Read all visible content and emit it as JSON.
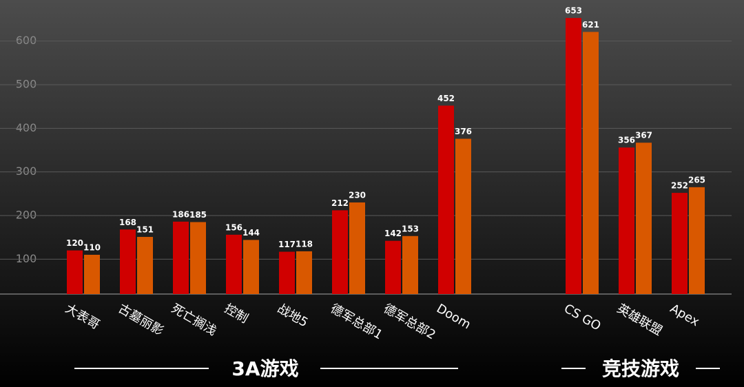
{
  "chart_data": {
    "type": "bar",
    "ylim": [
      20,
      680
    ],
    "yticks": [
      100,
      200,
      300,
      400,
      500,
      600
    ],
    "grid": true,
    "colors": [
      "#d00000",
      "#d95800"
    ],
    "groups": [
      {
        "label": "3A游戏",
        "categories": [
          "大表哥",
          "古墓丽影",
          "死亡搁浅",
          "控制",
          "战地5",
          "德军总部1",
          "德军总部2",
          "Doom"
        ],
        "series": [
          {
            "values": [
              120,
              168,
              186,
              156,
              117,
              212,
              142,
              452
            ]
          },
          {
            "values": [
              110,
              151,
              185,
              144,
              118,
              230,
              153,
              376
            ]
          }
        ]
      },
      {
        "label": "竞技游戏",
        "categories": [
          "CS GO",
          "英雄联盟",
          "Apex"
        ],
        "series": [
          {
            "values": [
              653,
              356,
              252
            ]
          },
          {
            "values": [
              621,
              367,
              265
            ]
          }
        ]
      }
    ]
  }
}
